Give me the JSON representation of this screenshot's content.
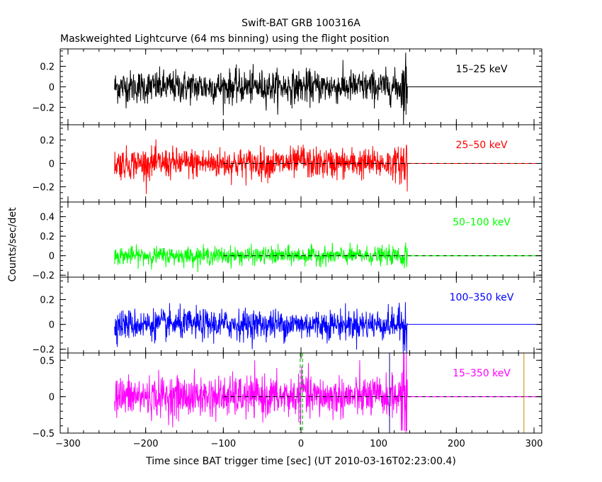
{
  "chart_data": {
    "type": "line",
    "title": "Swift-BAT GRB 100316A",
    "subtitle": "Maskweighted Lightcurve (64 ms binning) using the flight position",
    "xlabel": "Time since BAT trigger time [sec] (UT 2010-03-16T02:23:00.4)",
    "ylabel": "Counts/sec/det",
    "xlim": [
      -310,
      310
    ],
    "x_ticks": [
      -300,
      -200,
      -100,
      0,
      100,
      200,
      300
    ],
    "data_range": [
      -240,
      137
    ],
    "panels": [
      {
        "name": "15-25 keV",
        "label": "15–25 keV",
        "color": "#000000",
        "ylim": [
          -0.37,
          0.37
        ],
        "y_ticks": [
          -0.2,
          0,
          0.2
        ],
        "y_tick_labels": [
          "−0.2",
          "0",
          "0.2"
        ],
        "noise_sigma": 0.08,
        "baseline_style": "solid"
      },
      {
        "name": "25-50 keV",
        "label": "25–50 keV",
        "color": "#ff0000",
        "ylim": [
          -0.33,
          0.33
        ],
        "y_ticks": [
          -0.2,
          0,
          0.2
        ],
        "y_tick_labels": [
          "−0.2",
          "0",
          "0.2"
        ],
        "noise_sigma": 0.065,
        "baseline_style": "dashed"
      },
      {
        "name": "50-100 keV",
        "label": "50–100 keV",
        "color": "#00ff00",
        "ylim": [
          -0.22,
          0.55
        ],
        "y_ticks": [
          -0.2,
          0,
          0.2,
          0.4
        ],
        "y_tick_labels": [
          "−0.2",
          "0",
          "0.2",
          "0.4"
        ],
        "noise_sigma": 0.045,
        "baseline_style": "dashed"
      },
      {
        "name": "100-350 keV",
        "label": "100–350 keV",
        "color": "#0000ff",
        "ylim": [
          -0.23,
          0.38
        ],
        "y_ticks": [
          -0.2,
          0,
          0.2
        ],
        "y_tick_labels": [
          "−0.2",
          "0",
          "0.2"
        ],
        "noise_sigma": 0.06,
        "baseline_style": "solid"
      },
      {
        "name": "15-350 keV",
        "label": "15–350 keV",
        "color": "#ff00ff",
        "ylim": [
          -0.5,
          0.6
        ],
        "y_ticks": [
          -0.5,
          0,
          0.5
        ],
        "y_tick_labels": [
          "−0.5",
          "0",
          "0.5"
        ],
        "noise_sigma": 0.14,
        "baseline_style": "dashed"
      }
    ],
    "markers": [
      {
        "x": -1,
        "color": "#00aa00",
        "style": "dashed"
      },
      {
        "x": 2,
        "color": "#00aa00",
        "style": "dashed"
      },
      {
        "x": 114,
        "color": "#000080",
        "style": "solid"
      },
      {
        "x": 287,
        "color": "#cc8800",
        "style": "solid"
      }
    ]
  }
}
